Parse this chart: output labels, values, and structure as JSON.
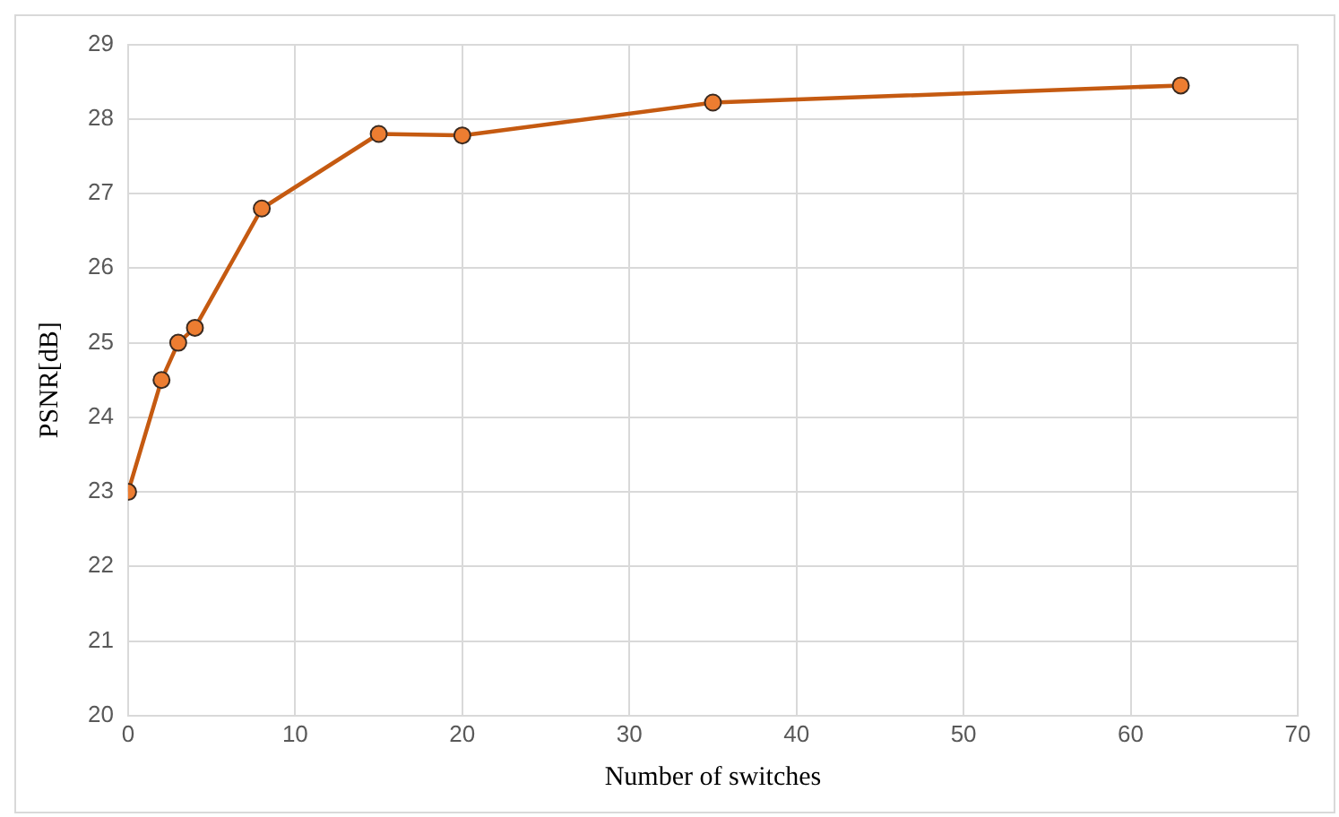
{
  "chart_data": {
    "type": "line",
    "xlabel": "Number of switches",
    "ylabel": "PSNR[dB]",
    "x": [
      0,
      2,
      3,
      4,
      8,
      15,
      20,
      35,
      63
    ],
    "series": [
      {
        "color": "#c55a11",
        "values": [
          23.0,
          24.5,
          25.0,
          25.2,
          26.8,
          27.8,
          27.78,
          28.22,
          28.45
        ]
      }
    ],
    "xlim": [
      0,
      70
    ],
    "xticks": [
      0,
      10,
      20,
      30,
      40,
      50,
      60,
      70
    ],
    "ylim": [
      20,
      29
    ],
    "yticks": [
      20,
      21,
      22,
      23,
      24,
      25,
      26,
      27,
      28,
      29
    ],
    "grid": true,
    "legend": false,
    "marker": "circle",
    "line_style": "solid"
  }
}
